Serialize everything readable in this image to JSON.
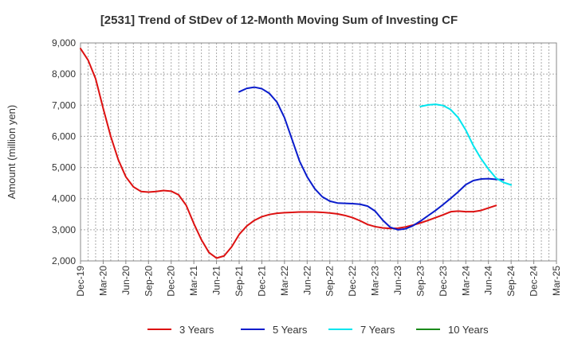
{
  "chart_data": {
    "type": "line",
    "title": "[2531]  Trend of StDev of 12-Month Moving Sum of Investing CF",
    "ylabel": "Amount (million yen)",
    "xlabel": "",
    "ylim": [
      2000,
      9000
    ],
    "yticks": [
      "2,000",
      "3,000",
      "4,000",
      "5,000",
      "6,000",
      "7,000",
      "8,000",
      "9,000"
    ],
    "ytick_values": [
      2000,
      3000,
      4000,
      5000,
      6000,
      7000,
      8000,
      9000
    ],
    "x_start": "Dec-19",
    "x_count": 64,
    "xtick_labels": [
      "Dec-19",
      "Mar-20",
      "Jun-20",
      "Sep-20",
      "Dec-20",
      "Mar-21",
      "Jun-21",
      "Sep-21",
      "Dec-21",
      "Mar-22",
      "Jun-22",
      "Sep-22",
      "Dec-22",
      "Mar-23",
      "Jun-23",
      "Sep-23",
      "Dec-23",
      "Mar-24",
      "Jun-24",
      "Sep-24",
      "Dec-24",
      "Mar-25"
    ],
    "grid": true,
    "legend_position": "bottom",
    "series": [
      {
        "name": "3 Years",
        "color": "#dd1111",
        "start_index": 0,
        "values": [
          8820,
          8450,
          7850,
          6900,
          6000,
          5250,
          4700,
          4380,
          4230,
          4210,
          4230,
          4260,
          4240,
          4120,
          3780,
          3200,
          2680,
          2270,
          2090,
          2160,
          2450,
          2850,
          3120,
          3300,
          3420,
          3490,
          3530,
          3550,
          3560,
          3570,
          3570,
          3570,
          3560,
          3540,
          3510,
          3460,
          3390,
          3290,
          3170,
          3100,
          3060,
          3040,
          3050,
          3090,
          3150,
          3220,
          3300,
          3390,
          3480,
          3580,
          3600,
          3580,
          3580,
          3620,
          3700,
          3780
        ]
      },
      {
        "name": "5 Years",
        "color": "#0a1ccc",
        "start_index": 21,
        "values": [
          7430,
          7540,
          7580,
          7530,
          7380,
          7100,
          6600,
          5900,
          5200,
          4700,
          4320,
          4060,
          3920,
          3860,
          3850,
          3840,
          3820,
          3760,
          3600,
          3310,
          3080,
          3000,
          3030,
          3130,
          3280,
          3450,
          3620,
          3810,
          4010,
          4220,
          4450,
          4580,
          4630,
          4640,
          4620,
          4610
        ]
      },
      {
        "name": "7 Years",
        "color": "#00e5ee",
        "start_index": 45,
        "values": [
          6960,
          7010,
          7030,
          6990,
          6860,
          6600,
          6200,
          5700,
          5290,
          4950,
          4660,
          4520,
          4440
        ]
      },
      {
        "name": "10 Years",
        "color": "#1a8a1a",
        "start_index": 0,
        "values": []
      }
    ]
  }
}
